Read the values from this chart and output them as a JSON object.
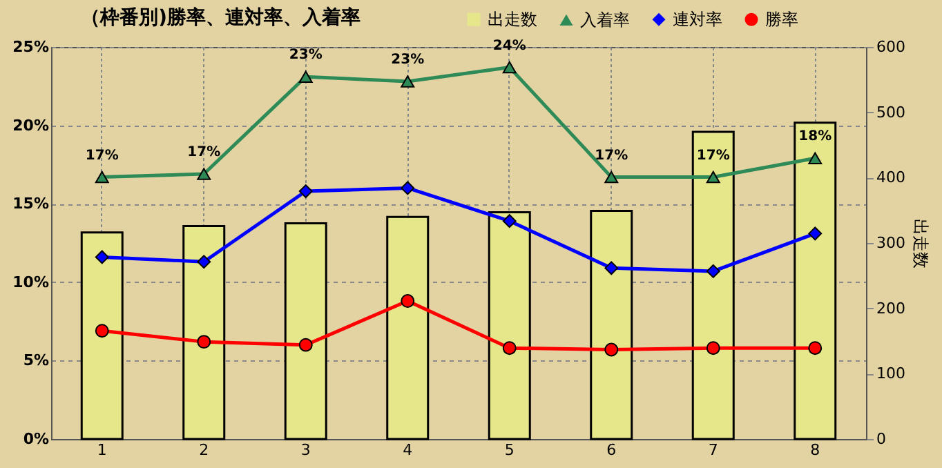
{
  "chart_data": {
    "type": "line",
    "title": "（枠番別)勝率、連対率、入着率",
    "categories": [
      "1",
      "2",
      "3",
      "4",
      "5",
      "6",
      "7",
      "8"
    ],
    "series": [
      {
        "name": "出走数",
        "type": "bar",
        "axis": "y2",
        "color": "#e6e68a",
        "values": [
          316,
          326,
          330,
          340,
          347,
          349,
          470,
          484
        ]
      },
      {
        "name": "入着率",
        "color": "#2e8b57",
        "marker": "triangle",
        "values": [
          16.7,
          16.9,
          23.1,
          22.8,
          23.7,
          16.7,
          16.7,
          17.9
        ],
        "value_labels": [
          "17%",
          "17%",
          "23%",
          "23%",
          "24%",
          "17%",
          "17%",
          "18%"
        ]
      },
      {
        "name": "連対率",
        "color": "#0000ff",
        "marker": "diamond",
        "values": [
          11.6,
          11.3,
          15.8,
          16.0,
          13.9,
          10.9,
          10.7,
          13.1
        ]
      },
      {
        "name": "勝率",
        "color": "#ff0000",
        "marker": "circle",
        "values": [
          6.9,
          6.2,
          6.0,
          8.8,
          5.8,
          5.7,
          5.8,
          5.8
        ]
      }
    ],
    "ylim": [
      0,
      25
    ],
    "yticks": [
      {
        "value": 0,
        "label": "0%"
      },
      {
        "value": 5,
        "label": "5%"
      },
      {
        "value": 10,
        "label": "10%"
      },
      {
        "value": 15,
        "label": "15%"
      },
      {
        "value": 20,
        "label": "20%"
      },
      {
        "value": 25,
        "label": "25%"
      }
    ],
    "y2label": "出走数",
    "y2lim": [
      0,
      600
    ],
    "y2ticks": [
      0,
      100,
      200,
      300,
      400,
      500,
      600
    ],
    "grid": true,
    "legend": "top right",
    "line_style": "solid"
  }
}
